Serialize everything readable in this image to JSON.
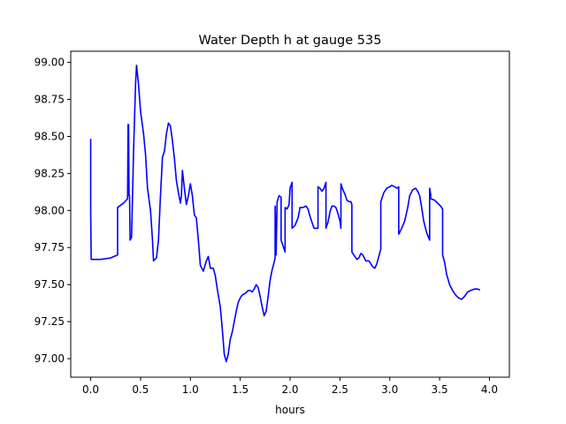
{
  "chart_data": {
    "type": "line",
    "title": "Water Depth h at gauge 535",
    "xlabel": "hours",
    "ylabel": "",
    "xlim": [
      -0.2,
      4.2
    ],
    "ylim": [
      96.875,
      99.075
    ],
    "xticks": [
      0.0,
      0.5,
      1.0,
      1.5,
      2.0,
      2.5,
      3.0,
      3.5,
      4.0
    ],
    "xtick_labels": [
      "0.0",
      "0.5",
      "1.0",
      "1.5",
      "2.0",
      "2.5",
      "3.0",
      "3.5",
      "4.0"
    ],
    "yticks": [
      97.0,
      97.25,
      97.5,
      97.75,
      98.0,
      98.25,
      98.5,
      98.75,
      99.0
    ],
    "ytick_labels": [
      "97.00",
      "97.25",
      "97.50",
      "97.75",
      "98.00",
      "98.25",
      "98.50",
      "98.75",
      "99.00"
    ],
    "grid": false,
    "legend": "none",
    "series": [
      {
        "color": "#0000ff",
        "points": [
          [
            0.0,
            98.48
          ],
          [
            0.0,
            97.99
          ],
          [
            0.005,
            97.67
          ],
          [
            0.1,
            97.67
          ],
          [
            0.2,
            97.68
          ],
          [
            0.27,
            97.7
          ],
          [
            0.27,
            98.02
          ],
          [
            0.33,
            98.05
          ],
          [
            0.37,
            98.08
          ],
          [
            0.375,
            98.58
          ],
          [
            0.38,
            98.58
          ],
          [
            0.385,
            98.1
          ],
          [
            0.39,
            98.1
          ],
          [
            0.395,
            97.8
          ],
          [
            0.41,
            97.82
          ],
          [
            0.43,
            98.4
          ],
          [
            0.45,
            98.85
          ],
          [
            0.46,
            98.98
          ],
          [
            0.48,
            98.85
          ],
          [
            0.5,
            98.67
          ],
          [
            0.53,
            98.52
          ],
          [
            0.55,
            98.38
          ],
          [
            0.57,
            98.15
          ],
          [
            0.6,
            98.0
          ],
          [
            0.62,
            97.8
          ],
          [
            0.63,
            97.66
          ],
          [
            0.66,
            97.68
          ],
          [
            0.68,
            97.8
          ],
          [
            0.7,
            98.1
          ],
          [
            0.72,
            98.36
          ],
          [
            0.74,
            98.4
          ],
          [
            0.76,
            98.52
          ],
          [
            0.78,
            98.59
          ],
          [
            0.8,
            98.57
          ],
          [
            0.82,
            98.47
          ],
          [
            0.84,
            98.35
          ],
          [
            0.86,
            98.2
          ],
          [
            0.88,
            98.12
          ],
          [
            0.9,
            98.05
          ],
          [
            0.91,
            98.1
          ],
          [
            0.92,
            98.27
          ],
          [
            0.94,
            98.15
          ],
          [
            0.96,
            98.04
          ],
          [
            0.98,
            98.1
          ],
          [
            1.0,
            98.18
          ],
          [
            1.02,
            98.1
          ],
          [
            1.04,
            97.97
          ],
          [
            1.06,
            97.95
          ],
          [
            1.08,
            97.8
          ],
          [
            1.1,
            97.63
          ],
          [
            1.13,
            97.59
          ],
          [
            1.16,
            97.66
          ],
          [
            1.18,
            97.69
          ],
          [
            1.2,
            97.61
          ],
          [
            1.23,
            97.61
          ],
          [
            1.25,
            97.56
          ],
          [
            1.27,
            97.47
          ],
          [
            1.3,
            97.35
          ],
          [
            1.32,
            97.2
          ],
          [
            1.34,
            97.03
          ],
          [
            1.36,
            96.98
          ],
          [
            1.38,
            97.03
          ],
          [
            1.4,
            97.13
          ],
          [
            1.42,
            97.18
          ],
          [
            1.44,
            97.25
          ],
          [
            1.46,
            97.32
          ],
          [
            1.48,
            97.38
          ],
          [
            1.5,
            97.41
          ],
          [
            1.52,
            97.43
          ],
          [
            1.55,
            97.44
          ],
          [
            1.58,
            97.46
          ],
          [
            1.6,
            97.46
          ],
          [
            1.62,
            97.45
          ],
          [
            1.64,
            97.47
          ],
          [
            1.66,
            97.5
          ],
          [
            1.68,
            97.48
          ],
          [
            1.7,
            97.42
          ],
          [
            1.72,
            97.35
          ],
          [
            1.74,
            97.29
          ],
          [
            1.76,
            97.32
          ],
          [
            1.78,
            97.42
          ],
          [
            1.8,
            97.53
          ],
          [
            1.82,
            97.6
          ],
          [
            1.84,
            97.65
          ],
          [
            1.85,
            97.68
          ],
          [
            1.85,
            98.03
          ],
          [
            1.86,
            97.7
          ],
          [
            1.87,
            98.06
          ],
          [
            1.89,
            98.1
          ],
          [
            1.91,
            98.09
          ],
          [
            1.91,
            97.8
          ],
          [
            1.93,
            97.76
          ],
          [
            1.95,
            97.72
          ],
          [
            1.95,
            98.02
          ],
          [
            1.97,
            98.01
          ],
          [
            1.99,
            98.04
          ],
          [
            2.0,
            98.15
          ],
          [
            2.02,
            98.19
          ],
          [
            2.02,
            97.88
          ],
          [
            2.05,
            97.9
          ],
          [
            2.08,
            97.95
          ],
          [
            2.1,
            98.02
          ],
          [
            2.13,
            98.02
          ],
          [
            2.16,
            98.03
          ],
          [
            2.18,
            98.01
          ],
          [
            2.2,
            97.96
          ],
          [
            2.22,
            97.92
          ],
          [
            2.24,
            97.88
          ],
          [
            2.26,
            97.88
          ],
          [
            2.28,
            97.88
          ],
          [
            2.28,
            98.16
          ],
          [
            2.3,
            98.15
          ],
          [
            2.32,
            98.13
          ],
          [
            2.34,
            98.15
          ],
          [
            2.36,
            98.19
          ],
          [
            2.36,
            97.88
          ],
          [
            2.38,
            97.92
          ],
          [
            2.4,
            97.99
          ],
          [
            2.42,
            98.03
          ],
          [
            2.44,
            98.03
          ],
          [
            2.46,
            98.02
          ],
          [
            2.48,
            97.98
          ],
          [
            2.5,
            97.93
          ],
          [
            2.51,
            97.88
          ],
          [
            2.51,
            98.18
          ],
          [
            2.53,
            98.14
          ],
          [
            2.55,
            98.11
          ],
          [
            2.57,
            98.07
          ],
          [
            2.59,
            98.06
          ],
          [
            2.61,
            98.06
          ],
          [
            2.62,
            98.04
          ],
          [
            2.62,
            97.72
          ],
          [
            2.65,
            97.69
          ],
          [
            2.67,
            97.67
          ],
          [
            2.69,
            97.68
          ],
          [
            2.71,
            97.71
          ],
          [
            2.73,
            97.7
          ],
          [
            2.76,
            97.66
          ],
          [
            2.79,
            97.66
          ],
          [
            2.81,
            97.64
          ],
          [
            2.83,
            97.62
          ],
          [
            2.85,
            97.61
          ],
          [
            2.87,
            97.64
          ],
          [
            2.89,
            97.69
          ],
          [
            2.91,
            97.74
          ],
          [
            2.91,
            98.06
          ],
          [
            2.94,
            98.12
          ],
          [
            2.97,
            98.15
          ],
          [
            3.0,
            98.16
          ],
          [
            3.02,
            98.17
          ],
          [
            3.05,
            98.16
          ],
          [
            3.07,
            98.15
          ],
          [
            3.09,
            98.16
          ],
          [
            3.09,
            97.84
          ],
          [
            3.12,
            97.88
          ],
          [
            3.15,
            97.93
          ],
          [
            3.18,
            98.02
          ],
          [
            3.2,
            98.1
          ],
          [
            3.23,
            98.14
          ],
          [
            3.26,
            98.15
          ],
          [
            3.28,
            98.13
          ],
          [
            3.3,
            98.1
          ],
          [
            3.32,
            98.02
          ],
          [
            3.34,
            97.93
          ],
          [
            3.37,
            97.85
          ],
          [
            3.4,
            97.8
          ],
          [
            3.4,
            98.15
          ],
          [
            3.41,
            98.11
          ],
          [
            3.41,
            98.08
          ],
          [
            3.45,
            98.07
          ],
          [
            3.48,
            98.05
          ],
          [
            3.51,
            98.03
          ],
          [
            3.53,
            98.01
          ],
          [
            3.53,
            97.7
          ],
          [
            3.55,
            97.65
          ],
          [
            3.57,
            97.57
          ],
          [
            3.6,
            97.5
          ],
          [
            3.63,
            97.46
          ],
          [
            3.66,
            97.43
          ],
          [
            3.69,
            97.41
          ],
          [
            3.72,
            97.4
          ],
          [
            3.75,
            97.42
          ],
          [
            3.78,
            97.45
          ],
          [
            3.81,
            97.46
          ],
          [
            3.85,
            97.47
          ],
          [
            3.88,
            97.47
          ],
          [
            3.9,
            97.465
          ]
        ]
      }
    ]
  }
}
